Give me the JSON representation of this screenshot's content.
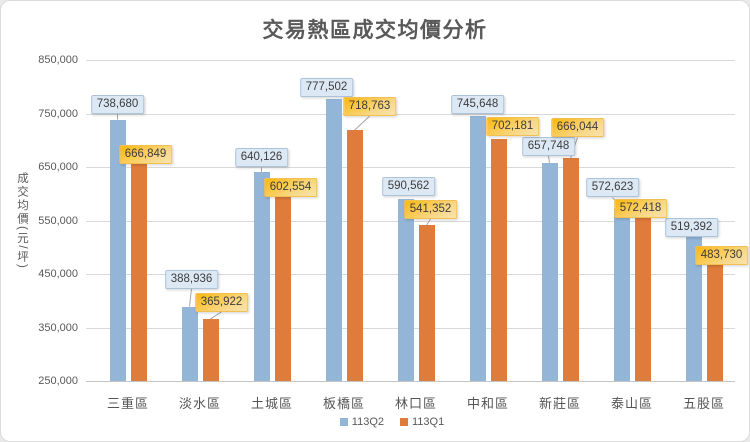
{
  "chart_data": {
    "type": "bar",
    "title": "交易熱區成交均價分析",
    "ylabel": "成交均價(元/坪)",
    "xlabel": "",
    "ylim": [
      250000,
      850000
    ],
    "ytick_step": 100000,
    "grid": true,
    "legend_position": "bottom",
    "categories": [
      "三重區",
      "淡水區",
      "土城區",
      "板橋區",
      "林口區",
      "中和區",
      "新莊區",
      "泰山區",
      "五股區"
    ],
    "series": [
      {
        "name": "113Q2",
        "color": "#93b5d7",
        "values": [
          738680,
          388936,
          640126,
          777502,
          590562,
          745648,
          657748,
          572623,
          519392
        ],
        "label_hints": [
          [
            0,
            6
          ],
          [
            2,
            18
          ],
          [
            0,
            5
          ],
          [
            -7,
            2
          ],
          [
            3,
            3
          ],
          [
            0,
            2
          ],
          [
            -1,
            7
          ],
          [
            -9,
            11
          ],
          [
            -2,
            0
          ]
        ]
      },
      {
        "name": "113Q1",
        "color": "#df7b3b",
        "values": [
          666849,
          365922,
          602554,
          718763,
          541352,
          702181,
          666044,
          572418,
          483730
        ],
        "label_hints": [
          [
            7,
            -6
          ],
          [
            11,
            7
          ],
          [
            8,
            -5
          ],
          [
            15,
            14
          ],
          [
            4,
            6
          ],
          [
            14,
            3
          ],
          [
            7,
            21
          ],
          [
            -2,
            -9
          ],
          [
            7,
            -9
          ]
        ]
      }
    ]
  }
}
